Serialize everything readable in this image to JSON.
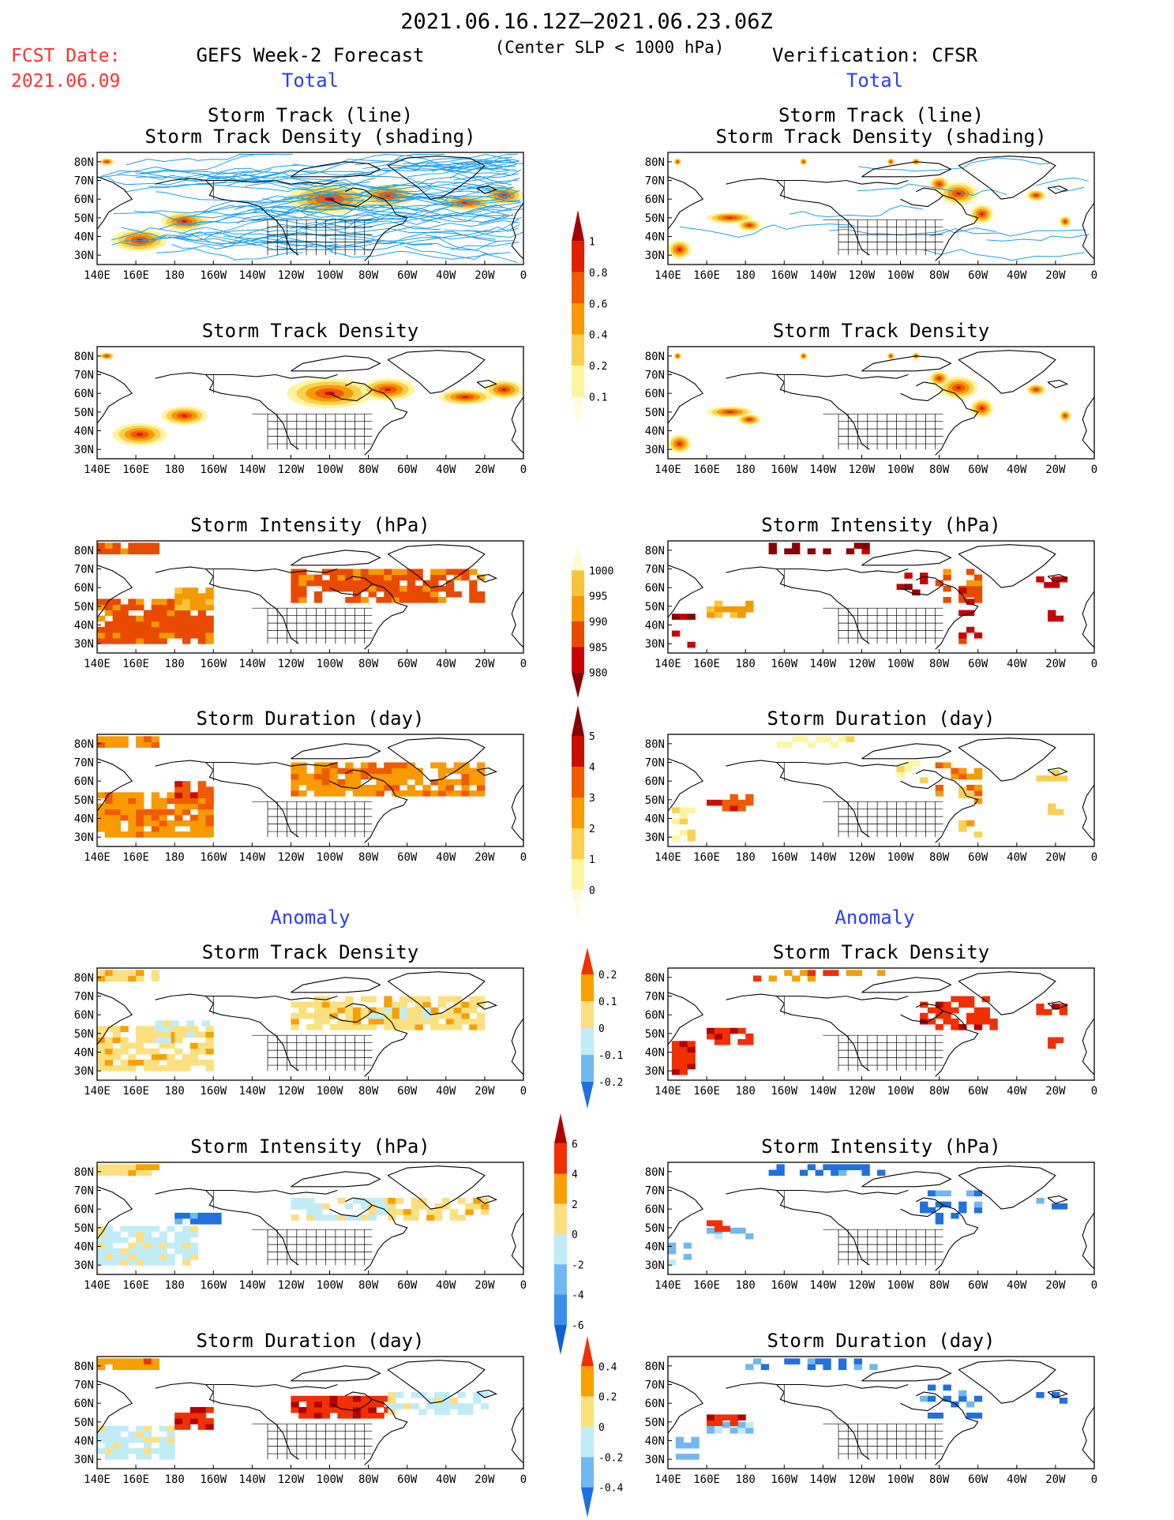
{
  "header": {
    "date_range": "2021.06.16.12Z—2021.06.23.06Z",
    "subtitle": "(Center SLP < 1000 hPa)",
    "fcst_label": "FCST Date:",
    "fcst_date": "2021.06.09",
    "left_title": "GEFS Week-2 Forecast",
    "right_title": "Verification: CFSR",
    "total_label": "Total",
    "anomaly_label": "Anomaly"
  },
  "axes": {
    "lon_ticks": [
      "140E",
      "160E",
      "180",
      "160W",
      "140W",
      "120W",
      "100W",
      "80W",
      "60W",
      "40W",
      "20W",
      "0"
    ],
    "lat_ticks": [
      "80N",
      "70N",
      "60N",
      "50N",
      "40N",
      "30N"
    ]
  },
  "panels": [
    {
      "id": "track",
      "title_lines": [
        "Storm Track (line)",
        "Storm Track Density (shading)"
      ]
    },
    {
      "id": "density",
      "title_lines": [
        "Storm Track Density"
      ]
    },
    {
      "id": "intensity",
      "title_lines": [
        "Storm Intensity (hPa)"
      ]
    },
    {
      "id": "duration",
      "title_lines": [
        "Storm Duration (day)"
      ]
    },
    {
      "id": "density_anom",
      "title_lines": [
        "Storm Track Density"
      ]
    },
    {
      "id": "intensity_anom",
      "title_lines": [
        "Storm Intensity (hPa)"
      ]
    },
    {
      "id": "duration_anom",
      "title_lines": [
        "Storm Duration (day)"
      ]
    }
  ],
  "colorbars": [
    {
      "id": "density_bar",
      "labels": [
        "1",
        "0.8",
        "0.6",
        "0.4",
        "0.2",
        "0.1"
      ],
      "colors": [
        "#a50000",
        "#e02000",
        "#f05a00",
        "#f89a00",
        "#fbd050",
        "#fff5a0",
        "#fffbe0"
      ]
    },
    {
      "id": "intensity_bar",
      "labels": [
        "1000",
        "995",
        "990",
        "985",
        "980"
      ],
      "colors": [
        "#fffbd0",
        "#f9c43a",
        "#f49a00",
        "#e84a00",
        "#c80000",
        "#8b0000"
      ]
    },
    {
      "id": "duration_bar",
      "labels": [
        "5",
        "4",
        "3",
        "2",
        "1",
        "0"
      ],
      "colors": [
        "#8b0000",
        "#c81000",
        "#f05a00",
        "#f89a00",
        "#fbd050",
        "#fff5a0",
        "#fffbe0"
      ]
    },
    {
      "id": "density_anom_bar",
      "labels": [
        "0.2",
        "0.1",
        "0",
        "-0.1",
        "-0.2"
      ],
      "colors": [
        "#f03000",
        "#f8a000",
        "#fce080",
        "#c0ecf8",
        "#70b8f0",
        "#2070e0"
      ]
    },
    {
      "id": "intensity_anom_bar",
      "labels": [
        "6",
        "4",
        "2",
        "0",
        "-2",
        "-4",
        "-6"
      ],
      "colors": [
        "#b00000",
        "#f03000",
        "#f8a000",
        "#fce080",
        "#c0ecf8",
        "#70b8f0",
        "#3a90e8",
        "#1060d8"
      ]
    },
    {
      "id": "duration_anom_bar",
      "labels": [
        "0.4",
        "0.2",
        "0",
        "-0.2",
        "-0.4"
      ],
      "colors": [
        "#f03000",
        "#f8a000",
        "#fce080",
        "#c0ecf8",
        "#70b8f0",
        "#2070e0"
      ]
    }
  ],
  "colors": {
    "forecast_tracks": "#1e9fe8",
    "title_red": "#ff3030",
    "title_blue": "#2a3cff"
  }
}
